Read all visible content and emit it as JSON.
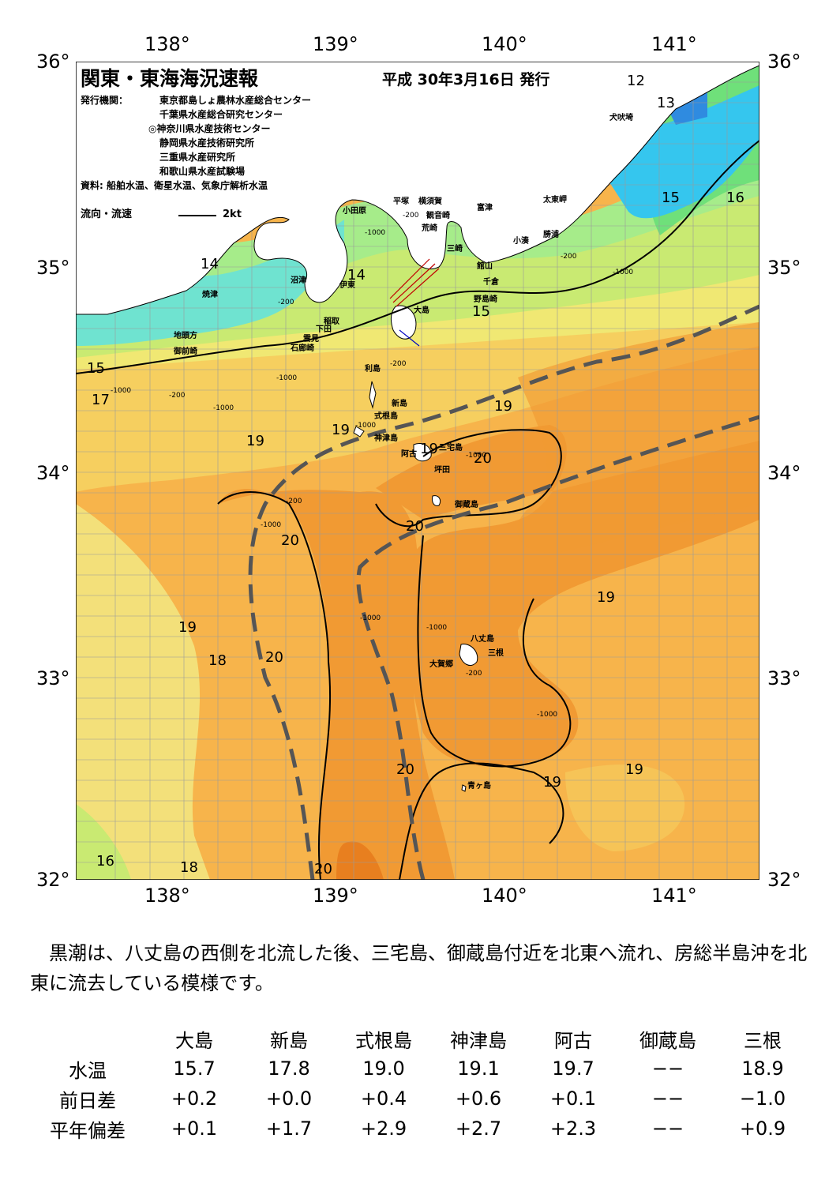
{
  "header": {
    "title": "関東・東海海況速報",
    "date": "平成 30年3月16日 発行",
    "publisher_label": "発行機関：",
    "publishers": [
      "東京都島しょ農林水産総合センター",
      "千葉県水産総合研究センター",
      "◎神奈川県水産技術センター",
      "静岡県水産技術研究所",
      "三重県水産研究所",
      "和歌山県水産試験場"
    ],
    "source": "資料: 船舶水温、衛星水温、気象庁解析水温",
    "flow_legend": "流向・流速",
    "flow_unit": "2kt"
  },
  "axes": {
    "lon_top": [
      "138°",
      "139°",
      "140°",
      "141°"
    ],
    "lon_bottom": [
      "138°",
      "139°",
      "140°",
      "141°"
    ],
    "lat_left": [
      "36°",
      "35°",
      "34°",
      "33°",
      "32°"
    ],
    "lat_right": [
      "36°",
      "35°",
      "34°",
      "33°",
      "32°"
    ]
  },
  "isotherm_labels": [
    "12",
    "13",
    "15",
    "16",
    "14",
    "14",
    "15",
    "15",
    "17",
    "19",
    "19",
    "19",
    "20",
    "19",
    "20",
    "20",
    "19",
    "19",
    "18",
    "20",
    "20",
    "19",
    "19",
    "16",
    "18",
    "20"
  ],
  "place_names": {
    "inubozaki": "犬吠埼",
    "taitozaki": "太東岬",
    "katsuura": "勝浦",
    "kominato": "小湊",
    "futtsu": "富津",
    "yokosuka": "横須賀",
    "kannonzaki": "観音崎",
    "arasaki": "荒崎",
    "misaki": "三崎",
    "hiratsuka": "平塚",
    "odawara": "小田原",
    "tateyama": "館山",
    "chikura": "千倉",
    "nojimazaki": "野島崎",
    "numazu": "沼津",
    "ito": "伊東",
    "oshima": "大島",
    "inatori": "稲取",
    "shimoda": "下田",
    "mikomoto": "雲見",
    "irozaki": "石廊崎",
    "yaizu": "焼津",
    "jitoukata": "地頭方",
    "omaezaki": "御前崎",
    "toshima": "利島",
    "niijima": "新島",
    "shikinejima": "式根島",
    "kozushima": "神津島",
    "ako": "阿古",
    "miyakejima": "三宅島",
    "tsubota": "坪田",
    "mikurajima": "御蔵島",
    "hachijojima": "八丈島",
    "mitsune": "三根",
    "okago": "大賀郷",
    "aogashima": "青ヶ島"
  },
  "depth_labels": [
    "-200",
    "-1000",
    "-200",
    "-1000",
    "-200",
    "-200",
    "-1000",
    "-1000",
    "-1000",
    "-1000",
    "-1000",
    "-200",
    "-1000",
    "-1000",
    "-1000",
    "-200",
    "-200",
    "-1000"
  ],
  "description": "黒潮は、八丈島の西側を北流した後、三宅島、御蔵島付近を北東へ流れ、房総半島沖を北東に流去している模様です。",
  "table": {
    "columns": [
      "大島",
      "新島",
      "式根島",
      "神津島",
      "阿古",
      "御蔵島",
      "三根"
    ],
    "rows": [
      {
        "label": "水温",
        "values": [
          "15.7",
          "17.8",
          "19.0",
          "19.1",
          "19.7",
          "−−",
          "18.9"
        ]
      },
      {
        "label": "前日差",
        "values": [
          "+0.2",
          "+0.0",
          "+0.4",
          "+0.6",
          "+0.1",
          "−−",
          "−1.0"
        ]
      },
      {
        "label": "平年偏差",
        "values": [
          "+0.1",
          "+1.7",
          "+2.9",
          "+2.7",
          "+2.3",
          "−−",
          "+0.9"
        ]
      }
    ]
  },
  "colors": {
    "t12": "#2f8be0",
    "t13": "#35c6ee",
    "t14": "#6fe3d0",
    "t15": "#a6ec8a",
    "t16": "#6fe07a",
    "t17": "#c9ea72",
    "t18": "#f3e07a",
    "t19": "#f7b44b",
    "t20": "#f19a33",
    "t21": "#e87f1f",
    "land": "#ffffff",
    "kuroshio": "#555555"
  }
}
